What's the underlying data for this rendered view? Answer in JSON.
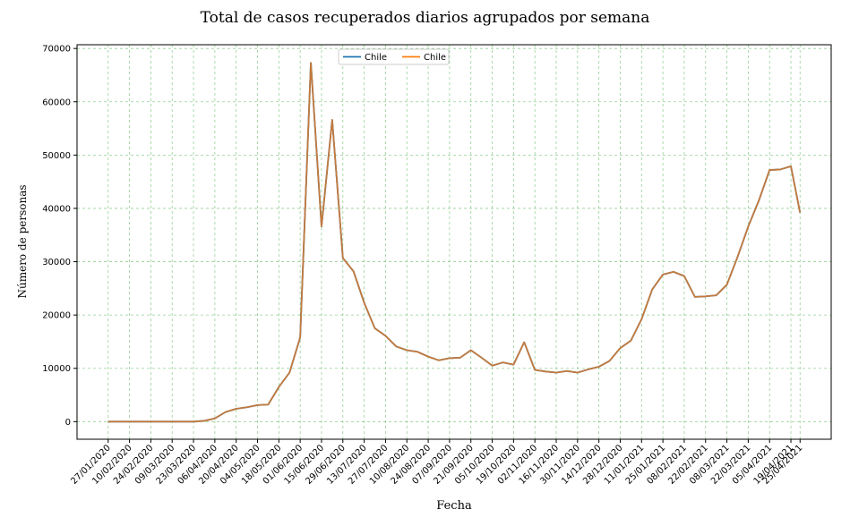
{
  "chart_data": {
    "type": "line",
    "title": "Total de casos recuperados diarios agrupados por semana",
    "xlabel": "Fecha",
    "ylabel": "Número de personas",
    "ylim": [
      -3300,
      70700
    ],
    "yticks": [
      0,
      10000,
      20000,
      30000,
      40000,
      50000,
      60000,
      70000
    ],
    "grid": true,
    "legend_position": "top-center",
    "colors": {
      "series_a": "#1f77b4",
      "series_b": "#ff7f0e",
      "combined": "#c47a3d",
      "grid": "#7cc47c"
    },
    "x": [
      "27/01/2020",
      "03/02/2020",
      "10/02/2020",
      "17/02/2020",
      "24/02/2020",
      "02/03/2020",
      "09/03/2020",
      "16/03/2020",
      "23/03/2020",
      "30/03/2020",
      "06/04/2020",
      "13/04/2020",
      "20/04/2020",
      "27/04/2020",
      "04/05/2020",
      "11/05/2020",
      "18/05/2020",
      "25/05/2020",
      "01/06/2020",
      "08/06/2020",
      "15/06/2020",
      "22/06/2020",
      "29/06/2020",
      "06/07/2020",
      "13/07/2020",
      "20/07/2020",
      "27/07/2020",
      "03/08/2020",
      "10/08/2020",
      "17/08/2020",
      "24/08/2020",
      "31/08/2020",
      "07/09/2020",
      "14/09/2020",
      "21/09/2020",
      "28/09/2020",
      "05/10/2020",
      "12/10/2020",
      "19/10/2020",
      "26/10/2020",
      "02/11/2020",
      "09/11/2020",
      "16/11/2020",
      "23/11/2020",
      "30/11/2020",
      "07/12/2020",
      "14/12/2020",
      "21/12/2020",
      "28/12/2020",
      "04/01/2021",
      "11/01/2021",
      "18/01/2021",
      "25/01/2021",
      "01/02/2021",
      "08/02/2021",
      "15/02/2021",
      "22/02/2021",
      "01/03/2021",
      "08/03/2021",
      "15/03/2021",
      "22/03/2021",
      "29/03/2021",
      "05/04/2021",
      "12/04/2021",
      "19/04/2021",
      "25/04/2021"
    ],
    "xticks": [
      "27/01/2020",
      "10/02/2020",
      "24/02/2020",
      "09/03/2020",
      "23/03/2020",
      "06/04/2020",
      "20/04/2020",
      "04/05/2020",
      "18/05/2020",
      "01/06/2020",
      "15/06/2020",
      "29/06/2020",
      "13/07/2020",
      "27/07/2020",
      "10/08/2020",
      "24/08/2020",
      "07/09/2020",
      "21/09/2020",
      "05/10/2020",
      "19/10/2020",
      "02/11/2020",
      "16/11/2020",
      "30/11/2020",
      "14/12/2020",
      "28/12/2020",
      "11/01/2021",
      "25/01/2021",
      "08/02/2021",
      "22/02/2021",
      "08/03/2021",
      "22/03/2021",
      "05/04/2021",
      "19/04/2021",
      "25/04/2021"
    ],
    "series": [
      {
        "name": "Chile",
        "color": "#1f77b4",
        "values": [
          0,
          0,
          0,
          0,
          0,
          0,
          0,
          0,
          0,
          150,
          600,
          1800,
          2400,
          2700,
          3100,
          3200,
          6500,
          9200,
          15800,
          67300,
          36600,
          56600,
          30700,
          28200,
          22300,
          17500,
          16100,
          14100,
          13400,
          13100,
          12200,
          11500,
          11900,
          12000,
          13400,
          12000,
          10500,
          11100,
          10700,
          14900,
          9700,
          9400,
          9200,
          9500,
          9200,
          9800,
          10300,
          11400,
          13800,
          15200,
          19200,
          24800,
          27600,
          28100,
          27300,
          23400,
          23500,
          23700,
          25700,
          30900,
          36600,
          41500,
          47200,
          47300,
          47900,
          39200
        ]
      },
      {
        "name": "Chile",
        "color": "#ff7f0e",
        "values": [
          0,
          0,
          0,
          0,
          0,
          0,
          0,
          0,
          0,
          150,
          600,
          1800,
          2400,
          2700,
          3100,
          3200,
          6500,
          9200,
          15800,
          67300,
          36600,
          56600,
          30700,
          28200,
          22300,
          17500,
          16100,
          14100,
          13400,
          13100,
          12200,
          11500,
          11900,
          12000,
          13400,
          12000,
          10500,
          11100,
          10700,
          14900,
          9700,
          9400,
          9200,
          9500,
          9200,
          9800,
          10300,
          11400,
          13800,
          15200,
          19200,
          24800,
          27600,
          28100,
          27300,
          23400,
          23500,
          23700,
          25700,
          30900,
          36600,
          41500,
          47200,
          47300,
          47900,
          39200
        ]
      }
    ]
  }
}
